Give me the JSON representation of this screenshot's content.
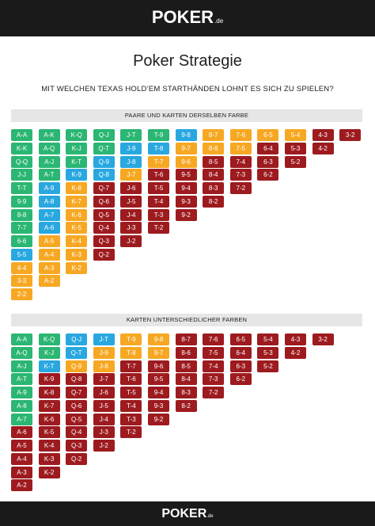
{
  "header": {
    "logo_text": "POKER",
    "logo_suffix": ".de"
  },
  "title": "Poker Strategie",
  "subtitle": "MIT WELCHEN TEXAS HOLD’EM STARTHÄNDEN LOHNT ES SICH ZU SPIELEN?",
  "colors": {
    "green": "#2bb673",
    "blue": "#29a8e0",
    "orange": "#f7a823",
    "red": "#9d1b1f"
  },
  "sections": [
    {
      "header": "PAARE UND KARTEN DERSELBEN FARBE",
      "columns": [
        [
          [
            "A-A",
            "g"
          ],
          [
            "K-K",
            "g"
          ],
          [
            "Q-Q",
            "g"
          ],
          [
            "J-J",
            "g"
          ],
          [
            "T-T",
            "g"
          ],
          [
            "9-9",
            "g"
          ],
          [
            "8-8",
            "g"
          ],
          [
            "7-7",
            "g"
          ],
          [
            "6-6",
            "g"
          ],
          [
            "5-5",
            "b"
          ],
          [
            "4-4",
            "o"
          ],
          [
            "3-3",
            "o"
          ],
          [
            "2-2",
            "o"
          ]
        ],
        [
          [
            "A-K",
            "g"
          ],
          [
            "A-Q",
            "g"
          ],
          [
            "A-J",
            "g"
          ],
          [
            "A-T",
            "g"
          ],
          [
            "A-9",
            "b"
          ],
          [
            "A-8",
            "b"
          ],
          [
            "A-7",
            "b"
          ],
          [
            "A-6",
            "b"
          ],
          [
            "A-5",
            "o"
          ],
          [
            "A-4",
            "o"
          ],
          [
            "A-3",
            "o"
          ],
          [
            "A-2",
            "o"
          ]
        ],
        [
          [
            "K-Q",
            "g"
          ],
          [
            "K-J",
            "g"
          ],
          [
            "K-T",
            "g"
          ],
          [
            "K-9",
            "b"
          ],
          [
            "K-8",
            "o"
          ],
          [
            "K-7",
            "o"
          ],
          [
            "K-6",
            "o"
          ],
          [
            "K-5",
            "o"
          ],
          [
            "K-4",
            "o"
          ],
          [
            "K-3",
            "o"
          ],
          [
            "K-2",
            "o"
          ]
        ],
        [
          [
            "Q-J",
            "g"
          ],
          [
            "Q-T",
            "g"
          ],
          [
            "Q-9",
            "b"
          ],
          [
            "Q-8",
            "b"
          ],
          [
            "Q-7",
            "r"
          ],
          [
            "Q-6",
            "r"
          ],
          [
            "Q-5",
            "r"
          ],
          [
            "Q-4",
            "r"
          ],
          [
            "Q-3",
            "r"
          ],
          [
            "Q-2",
            "r"
          ]
        ],
        [
          [
            "J-T",
            "g"
          ],
          [
            "J-9",
            "b"
          ],
          [
            "J-8",
            "b"
          ],
          [
            "J-7",
            "o"
          ],
          [
            "J-6",
            "r"
          ],
          [
            "J-5",
            "r"
          ],
          [
            "J-4",
            "r"
          ],
          [
            "J-3",
            "r"
          ],
          [
            "J-2",
            "r"
          ]
        ],
        [
          [
            "T-9",
            "g"
          ],
          [
            "T-8",
            "b"
          ],
          [
            "T-7",
            "o"
          ],
          [
            "T-6",
            "r"
          ],
          [
            "T-5",
            "r"
          ],
          [
            "T-4",
            "r"
          ],
          [
            "T-3",
            "r"
          ],
          [
            "T-2",
            "r"
          ]
        ],
        [
          [
            "9-8",
            "b"
          ],
          [
            "9-7",
            "o"
          ],
          [
            "9-6",
            "o"
          ],
          [
            "9-5",
            "r"
          ],
          [
            "9-4",
            "r"
          ],
          [
            "9-3",
            "r"
          ],
          [
            "9-2",
            "r"
          ]
        ],
        [
          [
            "8-7",
            "o"
          ],
          [
            "8-6",
            "o"
          ],
          [
            "8-5",
            "r"
          ],
          [
            "8-4",
            "r"
          ],
          [
            "8-3",
            "r"
          ],
          [
            "8-2",
            "r"
          ]
        ],
        [
          [
            "7-6",
            "o"
          ],
          [
            "7-5",
            "o"
          ],
          [
            "7-4",
            "r"
          ],
          [
            "7-3",
            "r"
          ],
          [
            "7-2",
            "r"
          ]
        ],
        [
          [
            "6-5",
            "o"
          ],
          [
            "6-4",
            "r"
          ],
          [
            "6-3",
            "r"
          ],
          [
            "6-2",
            "r"
          ]
        ],
        [
          [
            "5-4",
            "o"
          ],
          [
            "5-3",
            "r"
          ],
          [
            "5-2",
            "r"
          ]
        ],
        [
          [
            "4-3",
            "r"
          ],
          [
            "4-2",
            "r"
          ]
        ],
        [
          [
            "3-2",
            "r"
          ]
        ]
      ]
    },
    {
      "header": "KARTEN UNTERSCHIEDLICHER FARBEN",
      "columns": [
        [
          [
            "A-A",
            "g"
          ],
          [
            "A-Q",
            "g"
          ],
          [
            "A-J",
            "g"
          ],
          [
            "A-T",
            "g"
          ],
          [
            "A-9",
            "g"
          ],
          [
            "A-8",
            "g"
          ],
          [
            "A-7",
            "g"
          ],
          [
            "A-6",
            "r"
          ],
          [
            "A-5",
            "r"
          ],
          [
            "A-4",
            "r"
          ],
          [
            "A-3",
            "r"
          ],
          [
            "A-2",
            "r"
          ]
        ],
        [
          [
            "K-Q",
            "g"
          ],
          [
            "K-J",
            "g"
          ],
          [
            "K-T",
            "b"
          ],
          [
            "K-9",
            "r"
          ],
          [
            "K-8",
            "r"
          ],
          [
            "K-7",
            "r"
          ],
          [
            "K-6",
            "r"
          ],
          [
            "K-5",
            "r"
          ],
          [
            "K-4",
            "r"
          ],
          [
            "K-3",
            "r"
          ],
          [
            "K-2",
            "r"
          ]
        ],
        [
          [
            "Q-J",
            "b"
          ],
          [
            "Q-T",
            "b"
          ],
          [
            "Q-9",
            "o"
          ],
          [
            "Q-8",
            "r"
          ],
          [
            "Q-7",
            "r"
          ],
          [
            "Q-6",
            "r"
          ],
          [
            "Q-5",
            "r"
          ],
          [
            "Q-4",
            "r"
          ],
          [
            "Q-3",
            "r"
          ],
          [
            "Q-2",
            "r"
          ]
        ],
        [
          [
            "J-T",
            "b"
          ],
          [
            "J-9",
            "o"
          ],
          [
            "J-8",
            "o"
          ],
          [
            "J-7",
            "r"
          ],
          [
            "J-6",
            "r"
          ],
          [
            "J-5",
            "r"
          ],
          [
            "J-4",
            "r"
          ],
          [
            "J-3",
            "r"
          ],
          [
            "J-2",
            "r"
          ]
        ],
        [
          [
            "T-9",
            "o"
          ],
          [
            "T-8",
            "o"
          ],
          [
            "T-7",
            "r"
          ],
          [
            "T-6",
            "r"
          ],
          [
            "T-5",
            "r"
          ],
          [
            "T-4",
            "r"
          ],
          [
            "T-3",
            "r"
          ],
          [
            "T-2",
            "r"
          ]
        ],
        [
          [
            "9-8",
            "o"
          ],
          [
            "9-7",
            "o"
          ],
          [
            "9-6",
            "r"
          ],
          [
            "9-5",
            "r"
          ],
          [
            "9-4",
            "r"
          ],
          [
            "9-3",
            "r"
          ],
          [
            "9-2",
            "r"
          ]
        ],
        [
          [
            "8-7",
            "r"
          ],
          [
            "8-6",
            "r"
          ],
          [
            "8-5",
            "r"
          ],
          [
            "8-4",
            "r"
          ],
          [
            "8-3",
            "r"
          ],
          [
            "8-2",
            "r"
          ]
        ],
        [
          [
            "7-6",
            "r"
          ],
          [
            "7-5",
            "r"
          ],
          [
            "7-4",
            "r"
          ],
          [
            "7-3",
            "r"
          ],
          [
            "7-2",
            "r"
          ]
        ],
        [
          [
            "6-5",
            "r"
          ],
          [
            "6-4",
            "r"
          ],
          [
            "6-3",
            "r"
          ],
          [
            "6-2",
            "r"
          ]
        ],
        [
          [
            "5-4",
            "r"
          ],
          [
            "5-3",
            "r"
          ],
          [
            "5-2",
            "r"
          ]
        ],
        [
          [
            "4-3",
            "r"
          ],
          [
            "4-2",
            "r"
          ]
        ],
        [
          [
            "3-2",
            "r"
          ]
        ]
      ]
    }
  ],
  "footer": {
    "logo_text": "POKER",
    "logo_suffix": ".de"
  }
}
